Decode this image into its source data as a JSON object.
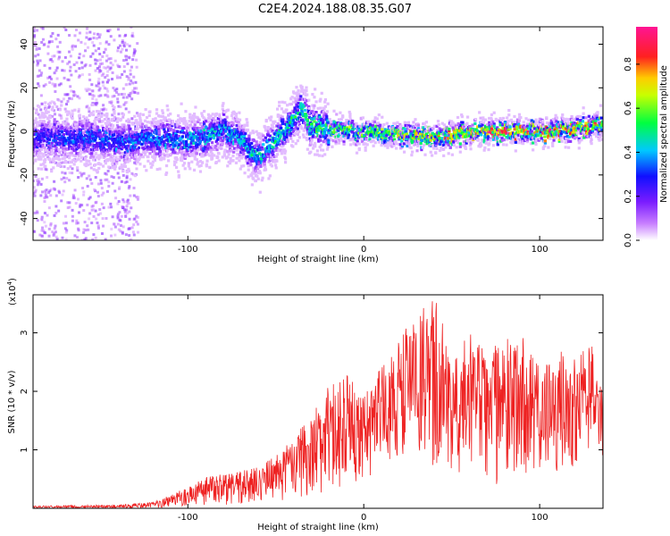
{
  "title": "C2E4.2024.188.08.35.G07",
  "chart_data": [
    {
      "type": "heatmap",
      "xlabel": "Height of straight line (km)",
      "ylabel": "Frequency (Hz)",
      "xlim": [
        -188,
        136
      ],
      "ylim": [
        -50,
        48
      ],
      "x_ticks": [
        -100,
        0,
        100
      ],
      "y_ticks": [
        -40,
        -20,
        0,
        20,
        40
      ],
      "colorbar": {
        "label": "Normalized spectral amplitude",
        "range": [
          0,
          0.97
        ],
        "ticks": [
          0.0,
          0.2,
          0.4,
          0.6,
          0.8
        ],
        "colormap": [
          "#ffffff",
          "#9b30ff",
          "#1010ff",
          "#00c8ff",
          "#00ff40",
          "#ffff00",
          "#ff2020",
          "#ff1493"
        ]
      },
      "ridge_center_hz": [
        {
          "x": -188,
          "y": -3
        },
        {
          "x": -160,
          "y": -3
        },
        {
          "x": -140,
          "y": -5
        },
        {
          "x": -120,
          "y": -3
        },
        {
          "x": -100,
          "y": -4
        },
        {
          "x": -90,
          "y": -3
        },
        {
          "x": -80,
          "y": 2
        },
        {
          "x": -70,
          "y": -5
        },
        {
          "x": -60,
          "y": -12
        },
        {
          "x": -50,
          "y": -4
        },
        {
          "x": -40,
          "y": 5
        },
        {
          "x": -35,
          "y": 10
        },
        {
          "x": -30,
          "y": 3
        },
        {
          "x": -20,
          "y": 1
        },
        {
          "x": 0,
          "y": 0
        },
        {
          "x": 20,
          "y": -2
        },
        {
          "x": 40,
          "y": -3
        },
        {
          "x": 60,
          "y": 0
        },
        {
          "x": 80,
          "y": 0
        },
        {
          "x": 100,
          "y": 0
        },
        {
          "x": 120,
          "y": 1
        },
        {
          "x": 136,
          "y": 3
        }
      ],
      "ridge_peak_amplitude": [
        {
          "x": -188,
          "y": 0.3
        },
        {
          "x": -100,
          "y": 0.4
        },
        {
          "x": -50,
          "y": 0.45
        },
        {
          "x": 0,
          "y": 0.6
        },
        {
          "x": 50,
          "y": 0.75
        },
        {
          "x": 80,
          "y": 0.9
        },
        {
          "x": 136,
          "y": 0.8
        }
      ]
    },
    {
      "type": "line",
      "xlabel": "Height of straight line (km)",
      "ylabel": "SNR (10 * v/v)",
      "y_multiplier": "(x10",
      "y_multiplier_exp": "4",
      "y_multiplier_close": ")",
      "xlim": [
        -188,
        136
      ],
      "ylim": [
        0,
        3.65
      ],
      "x_ticks": [
        -100,
        0,
        100
      ],
      "y_ticks": [
        1,
        2,
        3
      ],
      "color": "#ee2222",
      "envelope": [
        {
          "x": -188,
          "lo": 0.0,
          "hi": 0.04
        },
        {
          "x": -140,
          "lo": 0.0,
          "hi": 0.06
        },
        {
          "x": -120,
          "lo": 0.0,
          "hi": 0.1
        },
        {
          "x": -110,
          "lo": 0.02,
          "hi": 0.25
        },
        {
          "x": -100,
          "lo": 0.02,
          "hi": 0.35
        },
        {
          "x": -90,
          "lo": 0.05,
          "hi": 0.55
        },
        {
          "x": -80,
          "lo": 0.05,
          "hi": 0.6
        },
        {
          "x": -70,
          "lo": 0.05,
          "hi": 0.65
        },
        {
          "x": -60,
          "lo": 0.08,
          "hi": 0.7
        },
        {
          "x": -50,
          "lo": 0.1,
          "hi": 0.95
        },
        {
          "x": -40,
          "lo": 0.15,
          "hi": 1.2
        },
        {
          "x": -30,
          "lo": 0.2,
          "hi": 1.6
        },
        {
          "x": -20,
          "lo": 0.3,
          "hi": 2.1
        },
        {
          "x": -10,
          "lo": 0.4,
          "hi": 2.3
        },
        {
          "x": 0,
          "lo": 0.5,
          "hi": 2.0
        },
        {
          "x": 10,
          "lo": 0.6,
          "hi": 2.4
        },
        {
          "x": 20,
          "lo": 0.8,
          "hi": 2.9
        },
        {
          "x": 30,
          "lo": 0.9,
          "hi": 3.4
        },
        {
          "x": 40,
          "lo": 0.4,
          "hi": 3.6
        },
        {
          "x": 50,
          "lo": 0.6,
          "hi": 3.0
        },
        {
          "x": 60,
          "lo": 0.6,
          "hi": 3.1
        },
        {
          "x": 70,
          "lo": 0.5,
          "hi": 2.7
        },
        {
          "x": 80,
          "lo": 0.3,
          "hi": 2.9
        },
        {
          "x": 90,
          "lo": 0.5,
          "hi": 3.0
        },
        {
          "x": 100,
          "lo": 0.4,
          "hi": 2.4
        },
        {
          "x": 110,
          "lo": 0.6,
          "hi": 2.7
        },
        {
          "x": 120,
          "lo": 0.7,
          "hi": 2.6
        },
        {
          "x": 130,
          "lo": 1.1,
          "hi": 2.9
        },
        {
          "x": 136,
          "lo": 0.9,
          "hi": 2.1
        }
      ]
    }
  ]
}
